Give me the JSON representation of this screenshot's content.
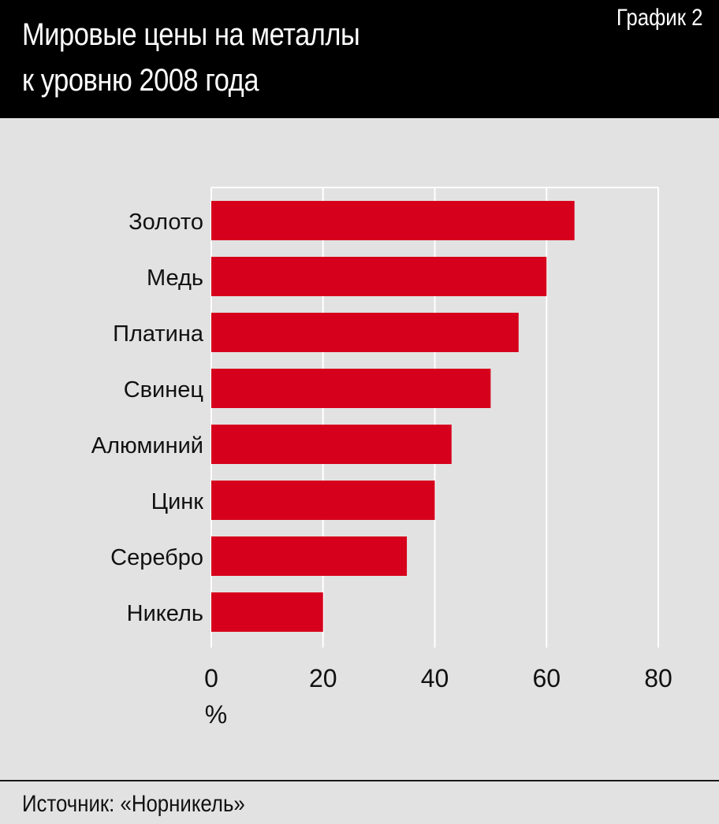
{
  "header": {
    "title_line1": "Мировые цены на металлы",
    "title_line2": "к уровню 2008 года",
    "chart_id": "График 2"
  },
  "footer": {
    "source": "Источник: «Норникель»"
  },
  "colors": {
    "bar": "#d6001c",
    "background": "#e2e2e2",
    "header": "#000000",
    "grid": "#ffffff"
  },
  "chart_data": {
    "type": "bar",
    "orientation": "horizontal",
    "title": "Мировые цены на металлы к уровню 2008 года",
    "categories": [
      "Золото",
      "Медь",
      "Платина",
      "Свинец",
      "Алюминий",
      "Цинк",
      "Серебро",
      "Никель"
    ],
    "values": [
      65,
      60,
      55,
      50,
      43,
      40,
      35,
      20
    ],
    "xticks": [
      "0",
      "20",
      "40",
      "60",
      "80"
    ],
    "xlabel": "%",
    "xlim": [
      0,
      80
    ],
    "grid": true
  }
}
